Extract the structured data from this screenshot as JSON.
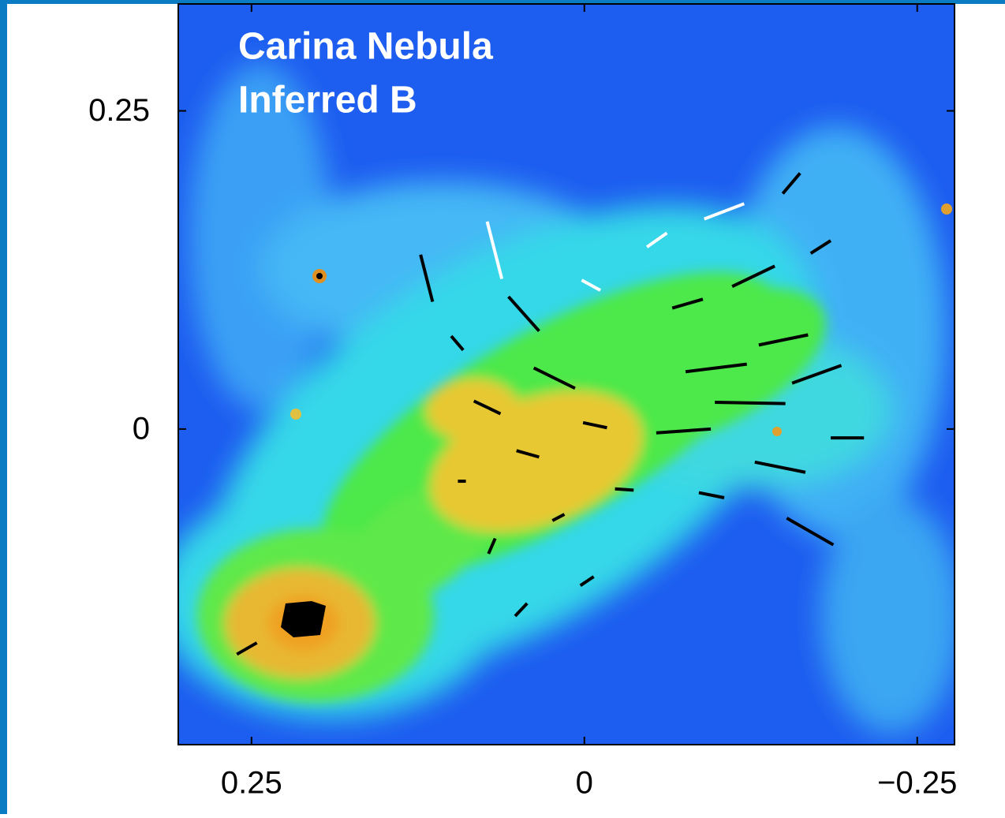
{
  "chart_data": {
    "type": "vector",
    "title": "Carina Nebula",
    "subtitle": "Inferred B",
    "xlim": [
      0.305,
      -0.278
    ],
    "ylim": [
      -0.248,
      0.334
    ],
    "xticks": [
      0.25,
      0,
      {
        "value": -0.25,
        "label": "−0.25"
      }
    ],
    "yticks": [
      0.25,
      0
    ],
    "series": [
      {
        "color": "#000000",
        "segments": [
          [
            0.123,
            0.137,
            0.114,
            0.1
          ],
          [
            0.057,
            0.104,
            0.034,
            0.077
          ],
          [
            0.1,
            0.073,
            0.091,
            0.062
          ],
          [
            0.038,
            0.048,
            0.007,
            0.032
          ],
          [
            0.083,
            0.022,
            0.063,
            0.012
          ],
          [
            0.001,
            0.005,
            -0.017,
            0.001
          ],
          [
            0.051,
            -0.017,
            0.034,
            -0.022
          ],
          [
            0.095,
            -0.041,
            0.089,
            -0.041
          ],
          [
            -0.023,
            -0.047,
            -0.037,
            -0.048
          ],
          [
            0.024,
            -0.072,
            0.015,
            -0.067
          ],
          [
            0.072,
            -0.098,
            0.067,
            -0.086
          ],
          [
            0.003,
            -0.123,
            -0.007,
            -0.116
          ],
          [
            0.052,
            -0.147,
            0.043,
            -0.137
          ],
          [
            -0.054,
            -0.003,
            -0.095,
            0.0
          ],
          [
            -0.086,
            -0.05,
            -0.105,
            -0.054
          ],
          [
            -0.098,
            0.021,
            -0.151,
            0.02
          ],
          [
            -0.128,
            -0.026,
            -0.166,
            -0.034
          ],
          [
            -0.076,
            0.045,
            -0.122,
            0.051
          ],
          [
            -0.185,
            -0.007,
            -0.21,
            -0.007
          ],
          [
            -0.131,
            0.066,
            -0.168,
            0.074
          ],
          [
            -0.152,
            -0.07,
            -0.187,
            -0.091
          ],
          [
            -0.156,
            0.036,
            -0.193,
            0.05
          ],
          [
            -0.066,
            0.095,
            -0.089,
            0.102
          ],
          [
            -0.111,
            0.112,
            -0.143,
            0.128
          ],
          [
            -0.17,
            0.138,
            -0.185,
            0.148
          ],
          [
            -0.149,
            0.185,
            -0.162,
            0.201
          ],
          [
            0.261,
            -0.177,
            0.246,
            -0.168
          ]
        ]
      },
      {
        "color": "#ffffff",
        "segments": [
          [
            0.073,
            0.163,
            0.062,
            0.118
          ],
          [
            -0.09,
            0.165,
            -0.12,
            0.177
          ],
          [
            -0.047,
            0.143,
            -0.062,
            0.154
          ],
          [
            0.002,
            0.117,
            -0.012,
            0.109
          ]
        ]
      }
    ]
  }
}
